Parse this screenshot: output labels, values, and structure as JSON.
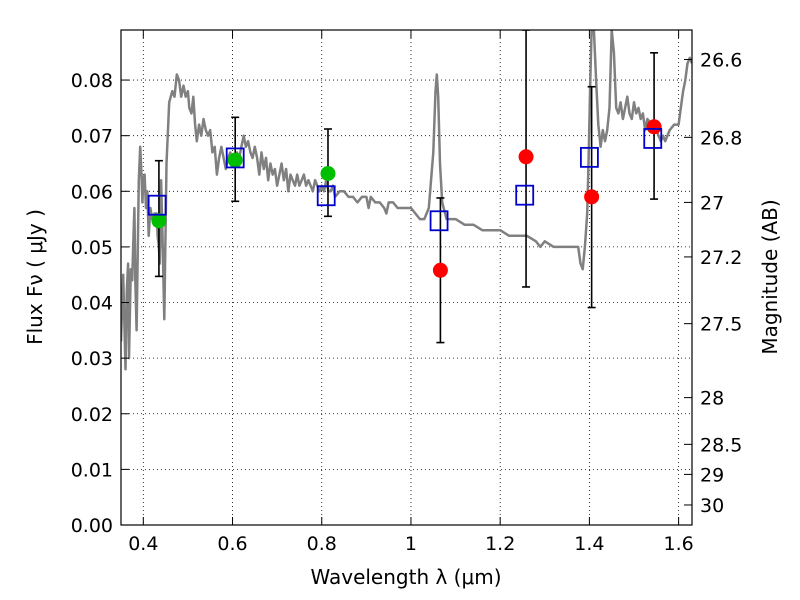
{
  "chart_data": {
    "type": "scatter",
    "xlabel": "Wavelength  λ (μm)",
    "ylabel": "Flux  Fν  ( μJy )",
    "y2label": "Magnitude (AB)",
    "xlim": [
      0.35,
      1.63
    ],
    "ylim": [
      0.0,
      0.089
    ],
    "grid": true,
    "x_ticks": [
      {
        "value": 0.4,
        "label": "0.4"
      },
      {
        "value": 0.6,
        "label": "0.6"
      },
      {
        "value": 0.8,
        "label": "0.8"
      },
      {
        "value": 1.0,
        "label": "1"
      },
      {
        "value": 1.2,
        "label": "1.2"
      },
      {
        "value": 1.4,
        "label": "1.4"
      },
      {
        "value": 1.6,
        "label": "1.6"
      }
    ],
    "y_ticks": [
      {
        "value": 0.0,
        "label": "0.00"
      },
      {
        "value": 0.01,
        "label": "0.01"
      },
      {
        "value": 0.02,
        "label": "0.02"
      },
      {
        "value": 0.03,
        "label": "0.03"
      },
      {
        "value": 0.04,
        "label": "0.04"
      },
      {
        "value": 0.05,
        "label": "0.05"
      },
      {
        "value": 0.06,
        "label": "0.06"
      },
      {
        "value": 0.07,
        "label": "0.07"
      },
      {
        "value": 0.08,
        "label": "0.08"
      }
    ],
    "y2_ticks": [
      {
        "label": "26.6",
        "flux": 0.0837
      },
      {
        "label": "26.8",
        "flux": 0.0697
      },
      {
        "label": "27",
        "flux": 0.058
      },
      {
        "label": "27.2",
        "flux": 0.0482
      },
      {
        "label": "27.5",
        "flux": 0.0362
      },
      {
        "label": "28",
        "flux": 0.0229
      },
      {
        "label": "28.5",
        "flux": 0.0145
      },
      {
        "label": "29",
        "flux": 0.0091
      },
      {
        "label": "30",
        "flux": 0.0036
      }
    ],
    "series": [
      {
        "kind": "line",
        "color": "#808080",
        "points": [
          [
            0.35,
            0.033
          ],
          [
            0.355,
            0.045
          ],
          [
            0.36,
            0.028
          ],
          [
            0.363,
            0.042
          ],
          [
            0.366,
            0.047
          ],
          [
            0.368,
            0.03
          ],
          [
            0.372,
            0.046
          ],
          [
            0.375,
            0.044
          ],
          [
            0.378,
            0.052
          ],
          [
            0.38,
            0.057
          ],
          [
            0.382,
            0.044
          ],
          [
            0.385,
            0.035
          ],
          [
            0.39,
            0.062
          ],
          [
            0.393,
            0.068
          ],
          [
            0.396,
            0.063
          ],
          [
            0.398,
            0.058
          ],
          [
            0.4,
            0.062
          ],
          [
            0.403,
            0.063
          ],
          [
            0.406,
            0.057
          ],
          [
            0.409,
            0.06
          ],
          [
            0.412,
            0.052
          ],
          [
            0.416,
            0.057
          ],
          [
            0.42,
            0.055
          ],
          [
            0.425,
            0.056
          ],
          [
            0.43,
            0.056
          ],
          [
            0.432,
            0.052
          ],
          [
            0.435,
            0.05
          ],
          [
            0.437,
            0.047
          ],
          [
            0.44,
            0.062
          ],
          [
            0.443,
            0.052
          ],
          [
            0.447,
            0.037
          ],
          [
            0.452,
            0.065
          ],
          [
            0.458,
            0.076
          ],
          [
            0.465,
            0.078
          ],
          [
            0.47,
            0.077
          ],
          [
            0.475,
            0.081
          ],
          [
            0.48,
            0.08
          ],
          [
            0.485,
            0.077
          ],
          [
            0.49,
            0.079
          ],
          [
            0.495,
            0.077
          ],
          [
            0.5,
            0.078
          ],
          [
            0.503,
            0.075
          ],
          [
            0.508,
            0.074
          ],
          [
            0.512,
            0.077
          ],
          [
            0.516,
            0.072
          ],
          [
            0.52,
            0.069
          ],
          [
            0.525,
            0.072
          ],
          [
            0.53,
            0.07
          ],
          [
            0.535,
            0.073
          ],
          [
            0.54,
            0.071
          ],
          [
            0.545,
            0.07
          ],
          [
            0.55,
            0.071
          ],
          [
            0.555,
            0.067
          ],
          [
            0.56,
            0.068
          ],
          [
            0.565,
            0.063
          ],
          [
            0.57,
            0.066
          ],
          [
            0.575,
            0.068
          ],
          [
            0.58,
            0.066
          ],
          [
            0.585,
            0.064
          ],
          [
            0.59,
            0.066
          ],
          [
            0.595,
            0.067
          ],
          [
            0.6,
            0.065
          ],
          [
            0.605,
            0.066
          ],
          [
            0.61,
            0.067
          ],
          [
            0.615,
            0.066
          ],
          [
            0.62,
            0.068
          ],
          [
            0.625,
            0.07
          ],
          [
            0.63,
            0.068
          ],
          [
            0.635,
            0.069
          ],
          [
            0.64,
            0.067
          ],
          [
            0.645,
            0.066
          ],
          [
            0.65,
            0.068
          ],
          [
            0.655,
            0.066
          ],
          [
            0.66,
            0.063
          ],
          [
            0.665,
            0.067
          ],
          [
            0.67,
            0.064
          ],
          [
            0.675,
            0.066
          ],
          [
            0.68,
            0.062
          ],
          [
            0.685,
            0.065
          ],
          [
            0.69,
            0.063
          ],
          [
            0.695,
            0.064
          ],
          [
            0.7,
            0.061
          ],
          [
            0.705,
            0.063
          ],
          [
            0.71,
            0.065
          ],
          [
            0.715,
            0.062
          ],
          [
            0.72,
            0.064
          ],
          [
            0.725,
            0.06
          ],
          [
            0.73,
            0.063
          ],
          [
            0.735,
            0.062
          ],
          [
            0.74,
            0.061
          ],
          [
            0.745,
            0.063
          ],
          [
            0.75,
            0.061
          ],
          [
            0.755,
            0.062
          ],
          [
            0.76,
            0.063
          ],
          [
            0.765,
            0.061
          ],
          [
            0.77,
            0.062
          ],
          [
            0.775,
            0.061
          ],
          [
            0.78,
            0.06
          ],
          [
            0.785,
            0.062
          ],
          [
            0.79,
            0.061
          ],
          [
            0.795,
            0.06
          ],
          [
            0.8,
            0.061
          ],
          [
            0.805,
            0.06
          ],
          [
            0.81,
            0.062
          ],
          [
            0.815,
            0.06
          ],
          [
            0.82,
            0.06
          ],
          [
            0.825,
            0.061
          ],
          [
            0.83,
            0.059
          ],
          [
            0.84,
            0.06
          ],
          [
            0.85,
            0.06
          ],
          [
            0.86,
            0.059
          ],
          [
            0.87,
            0.059
          ],
          [
            0.88,
            0.058
          ],
          [
            0.89,
            0.059
          ],
          [
            0.9,
            0.059
          ],
          [
            0.905,
            0.057
          ],
          [
            0.91,
            0.059
          ],
          [
            0.92,
            0.058
          ],
          [
            0.93,
            0.058
          ],
          [
            0.94,
            0.057
          ],
          [
            0.945,
            0.056
          ],
          [
            0.95,
            0.058
          ],
          [
            0.96,
            0.058
          ],
          [
            0.97,
            0.057
          ],
          [
            0.98,
            0.057
          ],
          [
            0.99,
            0.057
          ],
          [
            1.0,
            0.057
          ],
          [
            1.01,
            0.056
          ],
          [
            1.02,
            0.055
          ],
          [
            1.03,
            0.055
          ],
          [
            1.04,
            0.057
          ],
          [
            1.05,
            0.067
          ],
          [
            1.055,
            0.078
          ],
          [
            1.058,
            0.081
          ],
          [
            1.061,
            0.077
          ],
          [
            1.065,
            0.065
          ],
          [
            1.07,
            0.058
          ],
          [
            1.08,
            0.055
          ],
          [
            1.1,
            0.055
          ],
          [
            1.12,
            0.054
          ],
          [
            1.14,
            0.054
          ],
          [
            1.16,
            0.053
          ],
          [
            1.18,
            0.053
          ],
          [
            1.2,
            0.053
          ],
          [
            1.22,
            0.052
          ],
          [
            1.24,
            0.052
          ],
          [
            1.26,
            0.052
          ],
          [
            1.28,
            0.051
          ],
          [
            1.29,
            0.05
          ],
          [
            1.3,
            0.051
          ],
          [
            1.32,
            0.05
          ],
          [
            1.34,
            0.05
          ],
          [
            1.36,
            0.05
          ],
          [
            1.375,
            0.05
          ],
          [
            1.38,
            0.047
          ],
          [
            1.385,
            0.046
          ],
          [
            1.39,
            0.05
          ],
          [
            1.395,
            0.056
          ],
          [
            1.398,
            0.065
          ],
          [
            1.402,
            0.08
          ],
          [
            1.405,
            0.089
          ],
          [
            1.41,
            0.089
          ],
          [
            1.415,
            0.08
          ],
          [
            1.42,
            0.072
          ],
          [
            1.425,
            0.068
          ],
          [
            1.43,
            0.071
          ],
          [
            1.435,
            0.069
          ],
          [
            1.44,
            0.071
          ],
          [
            1.445,
            0.075
          ],
          [
            1.45,
            0.089
          ],
          [
            1.455,
            0.085
          ],
          [
            1.46,
            0.075
          ],
          [
            1.465,
            0.074
          ],
          [
            1.47,
            0.076
          ],
          [
            1.475,
            0.073
          ],
          [
            1.48,
            0.075
          ],
          [
            1.485,
            0.077
          ],
          [
            1.49,
            0.074
          ],
          [
            1.495,
            0.073
          ],
          [
            1.5,
            0.076
          ],
          [
            1.505,
            0.074
          ],
          [
            1.51,
            0.075
          ],
          [
            1.515,
            0.073
          ],
          [
            1.52,
            0.074
          ],
          [
            1.525,
            0.071
          ],
          [
            1.53,
            0.073
          ],
          [
            1.54,
            0.072
          ],
          [
            1.55,
            0.071
          ],
          [
            1.56,
            0.069
          ],
          [
            1.565,
            0.07
          ],
          [
            1.57,
            0.069
          ],
          [
            1.58,
            0.071
          ],
          [
            1.59,
            0.072
          ],
          [
            1.6,
            0.072
          ],
          [
            1.605,
            0.075
          ],
          [
            1.61,
            0.078
          ],
          [
            1.615,
            0.08
          ],
          [
            1.62,
            0.083
          ],
          [
            1.625,
            0.084
          ],
          [
            1.63,
            0.083
          ]
        ]
      },
      {
        "kind": "points",
        "marker": "circle",
        "color": "#00bf00",
        "points": [
          {
            "x": 0.435,
            "y": 0.0547
          },
          {
            "x": 0.606,
            "y": 0.0656
          },
          {
            "x": 0.814,
            "y": 0.0632
          }
        ]
      },
      {
        "kind": "points",
        "marker": "circle",
        "color": "#ff0000",
        "points": [
          {
            "x": 1.066,
            "y": 0.0458
          },
          {
            "x": 1.258,
            "y": 0.0662
          },
          {
            "x": 1.405,
            "y": 0.059
          },
          {
            "x": 1.545,
            "y": 0.0716
          }
        ]
      },
      {
        "kind": "points",
        "marker": "open-square",
        "color": "#0000cc",
        "points": [
          {
            "x": 0.431,
            "y": 0.0575
          },
          {
            "x": 0.606,
            "y": 0.066
          },
          {
            "x": 0.81,
            "y": 0.0592
          },
          {
            "x": 1.063,
            "y": 0.0547
          },
          {
            "x": 1.255,
            "y": 0.0593
          },
          {
            "x": 1.4,
            "y": 0.0661
          },
          {
            "x": 1.542,
            "y": 0.0695
          }
        ]
      },
      {
        "kind": "errorbars",
        "color": "#000000",
        "points": [
          {
            "x": 0.435,
            "y": 0.0547,
            "low": 0.0447,
            "high": 0.0655
          },
          {
            "x": 0.606,
            "y": 0.0656,
            "low": 0.0582,
            "high": 0.0733
          },
          {
            "x": 0.814,
            "y": 0.0632,
            "low": 0.0555,
            "high": 0.0712
          },
          {
            "x": 1.066,
            "y": 0.0458,
            "low": 0.0328,
            "high": 0.0588
          },
          {
            "x": 1.258,
            "y": 0.0662,
            "low": 0.0428,
            "high": 0.089
          },
          {
            "x": 1.405,
            "y": 0.059,
            "low": 0.0391,
            "high": 0.0788
          },
          {
            "x": 1.545,
            "y": 0.0716,
            "low": 0.0586,
            "high": 0.0849
          }
        ]
      }
    ]
  }
}
